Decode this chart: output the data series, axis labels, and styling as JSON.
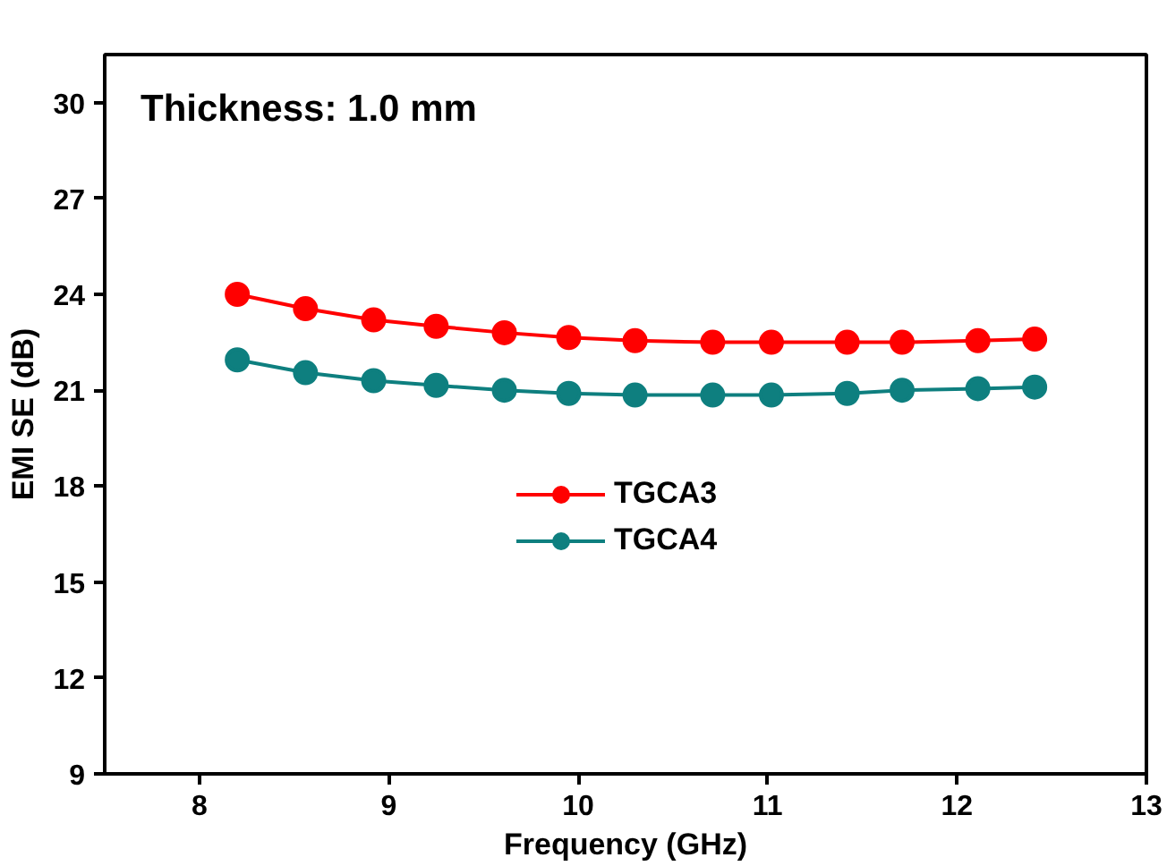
{
  "chart_data": {
    "type": "line",
    "xlabel": "Frequency (GHz)",
    "ylabel": "EMI SE (dB)",
    "annotations": [
      "Thickness: 1.0 mm"
    ],
    "x": [
      8.2,
      8.56,
      8.92,
      9.25,
      9.61,
      9.95,
      10.3,
      10.71,
      11.02,
      11.42,
      11.71,
      12.11,
      12.41
    ],
    "series": [
      {
        "name": "TGCA3",
        "color": "#ff0000",
        "values": [
          24.0,
          23.55,
          23.2,
          23.0,
          22.8,
          22.65,
          22.55,
          22.5,
          22.5,
          22.5,
          22.5,
          22.55,
          22.6
        ]
      },
      {
        "name": "TGCA4",
        "color": "#0e7f7f",
        "values": [
          21.95,
          21.55,
          21.3,
          21.15,
          21.0,
          20.9,
          20.85,
          20.85,
          20.85,
          20.9,
          21.0,
          21.05,
          21.1
        ]
      }
    ],
    "marker": "circle",
    "line_style": "solid",
    "legend": "center",
    "grid": false,
    "xlim": [
      7.5,
      13
    ],
    "xticks": [
      8,
      9,
      10,
      11,
      12,
      13
    ],
    "ylim": [
      9,
      31.5
    ],
    "yticks": [
      9,
      12,
      15,
      18,
      21,
      24,
      27,
      30
    ]
  }
}
